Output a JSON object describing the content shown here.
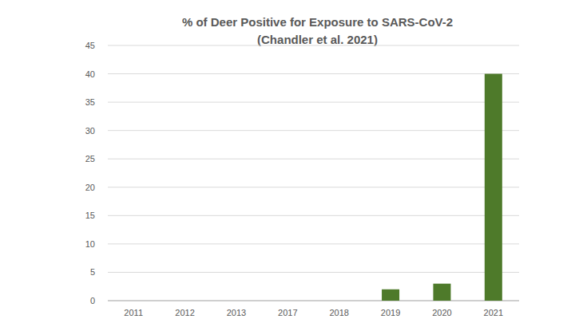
{
  "chart_data": {
    "type": "bar",
    "title": "% of Deer Positive for Exposure to SARS-CoV-2",
    "subtitle": "(Chandler et al. 2021)",
    "categories": [
      "2011",
      "2012",
      "2013",
      "2017",
      "2018",
      "2019",
      "2020",
      "2021"
    ],
    "values": [
      0,
      0,
      0,
      0,
      0,
      2,
      3,
      40
    ],
    "color": "#4e7a2a",
    "ylim": [
      0,
      45
    ],
    "yticks": [
      0,
      5,
      10,
      15,
      20,
      25,
      30,
      35,
      40,
      45
    ],
    "grid": true
  }
}
